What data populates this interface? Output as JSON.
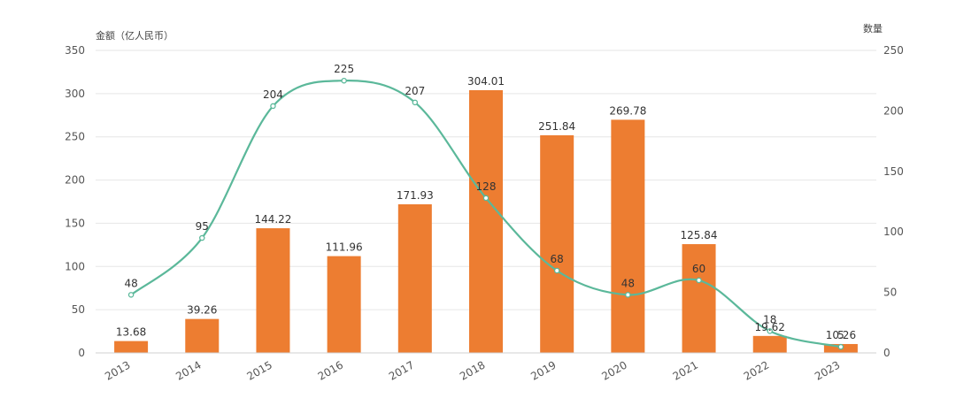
{
  "chart_data": {
    "type": "bar+line",
    "categories": [
      "2013",
      "2014",
      "2015",
      "2016",
      "2017",
      "2018",
      "2019",
      "2020",
      "2021",
      "2022",
      "2023"
    ],
    "series": [
      {
        "type": "bar",
        "axis": "left",
        "color": "#ED7D31",
        "values": [
          13.68,
          39.26,
          144.22,
          111.96,
          171.93,
          304.01,
          251.84,
          269.78,
          125.84,
          19.62,
          10.26
        ],
        "labels": [
          "13.68",
          "39.26",
          "144.22",
          "111.96",
          "171.93",
          "304.01",
          "251.84",
          "269.78",
          "125.84",
          "19.62",
          "10.26"
        ]
      },
      {
        "type": "line",
        "axis": "right",
        "color": "#5BB89A",
        "smooth": true,
        "values": [
          48,
          95,
          204,
          225,
          207,
          128,
          68,
          48,
          60,
          18,
          5
        ],
        "labels": [
          "48",
          "95",
          "204",
          "225",
          "207",
          "128",
          "68",
          "48",
          "60",
          "18",
          "5"
        ]
      }
    ],
    "y_left": {
      "label": "金额（亿人民币）",
      "min": 0,
      "max": 350,
      "ticks": [
        "0",
        "50",
        "100",
        "150",
        "200",
        "250",
        "300",
        "350"
      ]
    },
    "y_right": {
      "label": "数量",
      "min": 0,
      "max": 250,
      "ticks": [
        "0",
        "50",
        "100",
        "150",
        "200",
        "250"
      ]
    },
    "grid": true,
    "legend": "none"
  }
}
